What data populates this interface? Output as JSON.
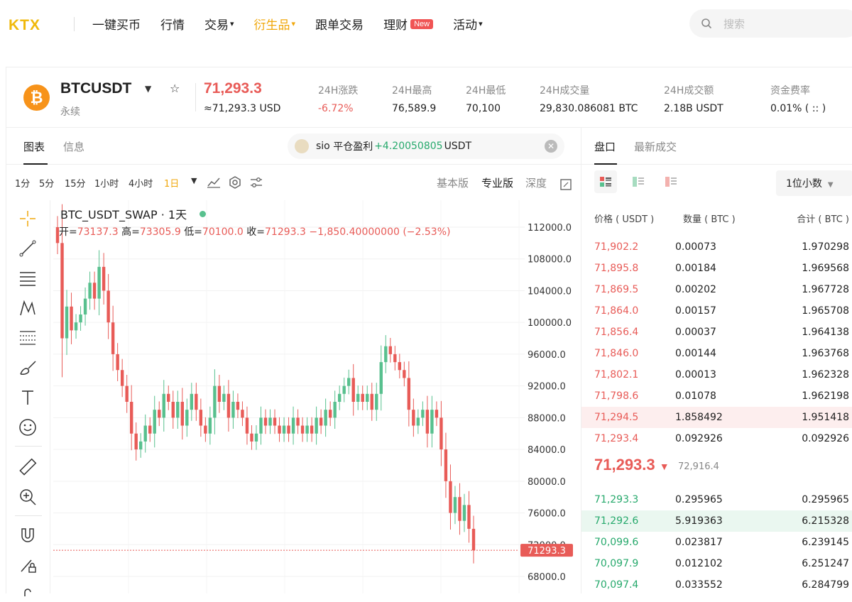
{
  "nav": {
    "logo": "KTX",
    "items": [
      {
        "label": "一键买币",
        "caret": ""
      },
      {
        "label": "行情",
        "caret": ""
      },
      {
        "label": "交易",
        "caret": "▾"
      },
      {
        "label": "衍生品",
        "caret": "▾",
        "active": true
      },
      {
        "label": "跟单交易",
        "caret": ""
      },
      {
        "label": "理财",
        "caret": "",
        "badge": "New"
      },
      {
        "label": "活动",
        "caret": "▾"
      }
    ],
    "search_placeholder": "搜索"
  },
  "ticker": {
    "symbol": "BTCUSDT",
    "subtitle": "永续",
    "last_price": "71,293.3",
    "last_usd": "≈71,293.3 USD",
    "stats": [
      {
        "label": "24H涨跌",
        "value": "-6.72%",
        "red": true
      },
      {
        "label": "24H最高",
        "value": "76,589.9"
      },
      {
        "label": "24H最低",
        "value": "70,100"
      },
      {
        "label": "24H成交量",
        "value": "29,830.086081 BTC"
      },
      {
        "label": "24H成交额",
        "value": "2.18B USDT"
      },
      {
        "label": "资金费率",
        "value": "0.01% ( :: )"
      }
    ]
  },
  "chart_panel": {
    "tabs": [
      "图表",
      "信息"
    ],
    "pnl_user": "sio",
    "pnl_text": "平仓盈利",
    "pnl_value": "+4.20050805",
    "pnl_unit": "USDT",
    "timeframes": [
      "1分",
      "5分",
      "15分",
      "1小时",
      "4小时",
      "1日"
    ],
    "active_timeframe": "1日",
    "versions": [
      "基本版",
      "专业版",
      "深度"
    ],
    "active_version": "专业版",
    "legend_title": "BTC_USDT_SWAP · 1天",
    "ohlc": {
      "open_label": "开=",
      "open": "73137.3",
      "high_label": "高=",
      "high": "73305.9",
      "low_label": "低=",
      "low": "70100.0",
      "close_label": "收=",
      "close": "71293.3",
      "change": "−1,850.40000000 (−2.53%)"
    },
    "price_tag": "71293.3"
  },
  "chart_data": {
    "type": "candlestick",
    "title": "BTC_USDT_SWAP · 1天",
    "ylim": [
      66000,
      113500
    ],
    "yticks": [
      "68000.0",
      "72000.0",
      "76000.0",
      "80000.0",
      "84000.0",
      "88000.0",
      "92000.0",
      "96000.0",
      "100000.0",
      "104000.0",
      "108000.0",
      "112000.0"
    ],
    "last_price": 71293.3,
    "colors": {
      "up": "#58c08e",
      "down": "#e85b57"
    },
    "close": [
      110000,
      98000,
      102000,
      99000,
      100000,
      101000,
      103000,
      105000,
      103000,
      107000,
      104000,
      100000,
      96000,
      94000,
      92000,
      90000,
      86000,
      84000,
      85000,
      87000,
      86000,
      89000,
      88000,
      91000,
      90000,
      88000,
      90000,
      87000,
      89000,
      91000,
      89000,
      87000,
      86000,
      88000,
      92000,
      90000,
      91000,
      88000,
      90000,
      89000,
      88000,
      86000,
      85000,
      86000,
      88000,
      87000,
      88000,
      87000,
      86000,
      87000,
      86000,
      88000,
      87000,
      86000,
      87000,
      86000,
      88000,
      87000,
      89000,
      88000,
      90000,
      91000,
      92000,
      93000,
      90000,
      91000,
      90000,
      91000,
      89000,
      91000,
      95000,
      97000,
      96000,
      95000,
      94000,
      93000,
      89000,
      87000,
      88000,
      89000,
      86000,
      89000,
      88000,
      84000,
      80000,
      76000,
      78000,
      75000,
      77000,
      74000,
      71293.3
    ]
  },
  "orderbook": {
    "tabs": [
      "盘口",
      "最新成交"
    ],
    "decimals": "1位小数",
    "headers": [
      "价格 ( USDT )",
      "数量 ( BTC )",
      "合计 ( BTC )"
    ],
    "asks": [
      [
        "71,902.2",
        "0.00073",
        "1.970298"
      ],
      [
        "71,895.8",
        "0.00184",
        "1.969568"
      ],
      [
        "71,869.5",
        "0.00202",
        "1.967728"
      ],
      [
        "71,864.0",
        "0.00157",
        "1.965708"
      ],
      [
        "71,856.4",
        "0.00037",
        "1.964138"
      ],
      [
        "71,846.0",
        "0.00144",
        "1.963768"
      ],
      [
        "71,802.1",
        "0.00013",
        "1.962328"
      ],
      [
        "71,798.6",
        "0.01078",
        "1.962198"
      ],
      [
        "71,294.5",
        "1.858492",
        "1.951418"
      ],
      [
        "71,293.4",
        "0.092926",
        "0.092926"
      ]
    ],
    "mid_price": "71,293.3",
    "mid_arrow": "▼",
    "mid_ref": "72,916.4",
    "bids": [
      [
        "71,293.3",
        "0.295965",
        "0.295965"
      ],
      [
        "71,292.6",
        "5.919363",
        "6.215328"
      ],
      [
        "70,099.6",
        "0.023817",
        "6.239145"
      ],
      [
        "70,097.9",
        "0.012102",
        "6.251247"
      ],
      [
        "70,097.4",
        "0.033552",
        "6.284799"
      ]
    ]
  }
}
